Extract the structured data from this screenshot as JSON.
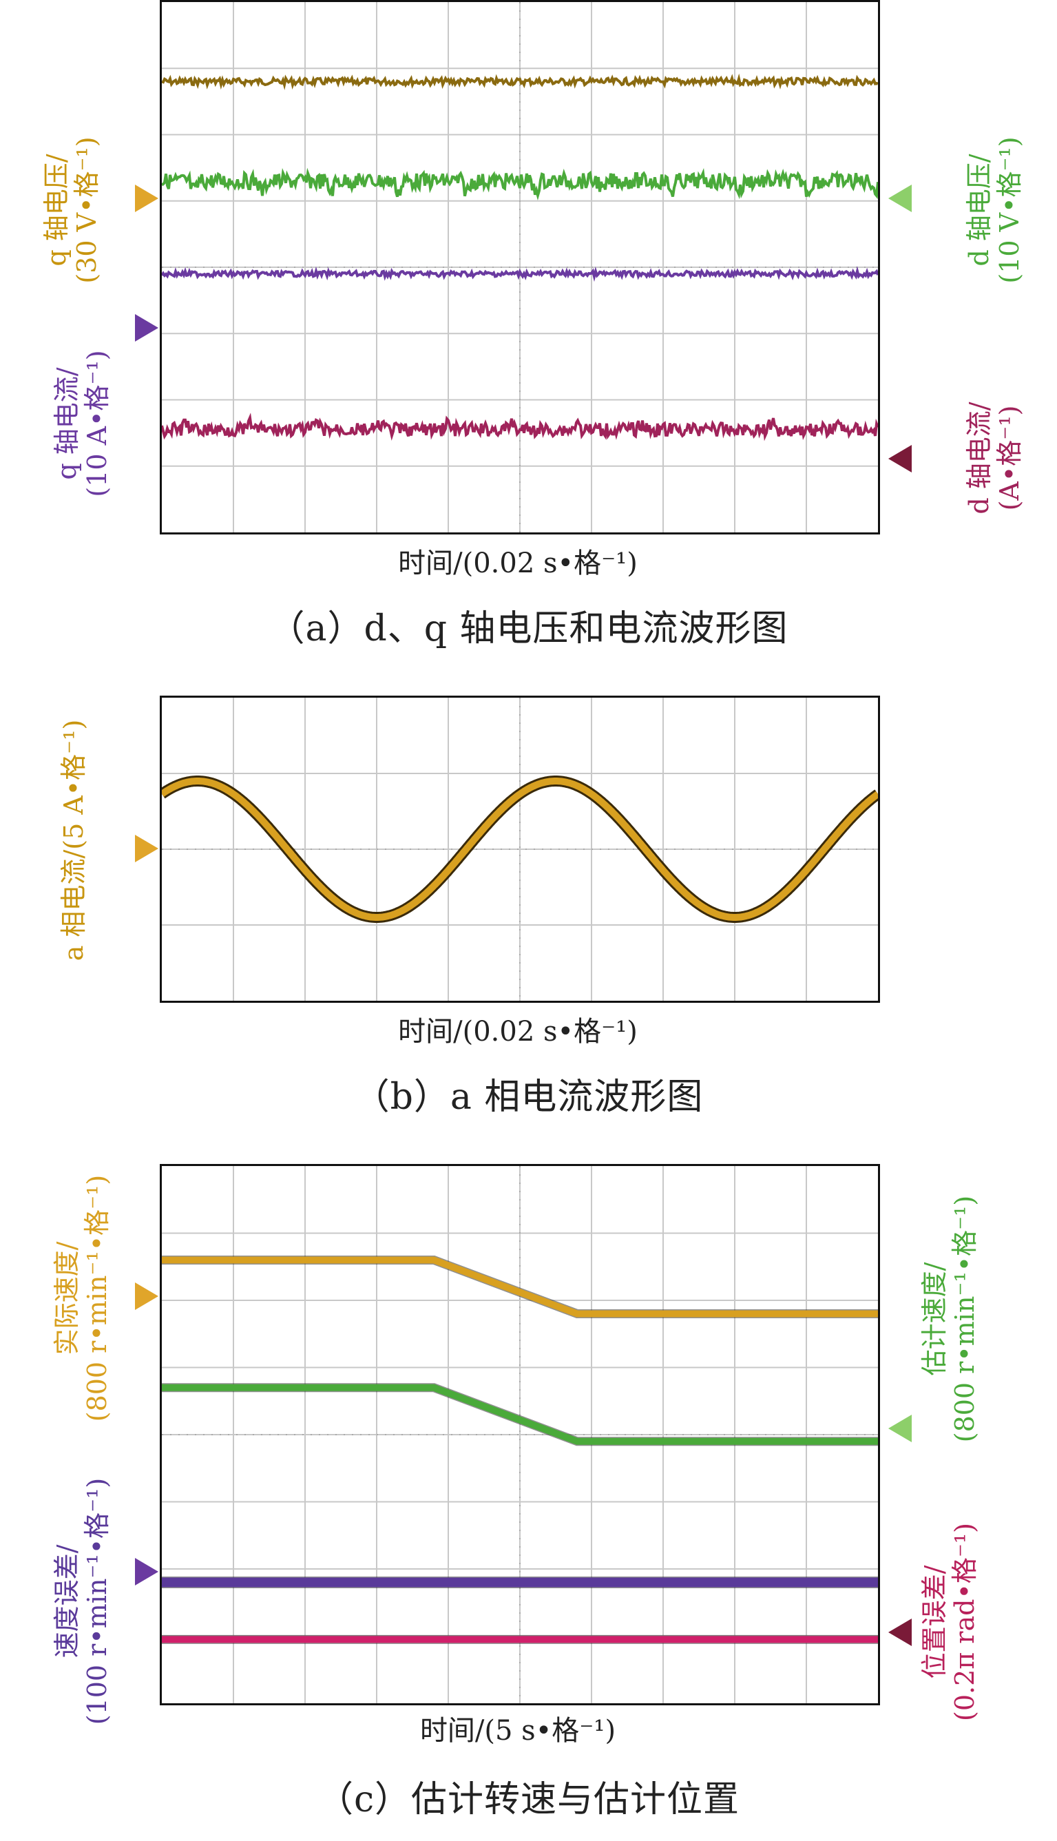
{
  "panels": [
    {
      "id": "a",
      "caption": "（a）d、q 轴电压和电流波形图",
      "xlabel": "时间/(0.02 s•格⁻¹)",
      "left_labels": [
        {
          "line1": "q 轴电压/",
          "line2": "(30 V•格⁻¹)",
          "color": "#c8950f"
        },
        {
          "line1": "q 轴电流/",
          "line2": "(10 A•格⁻¹)",
          "color": "#6a3aa0"
        }
      ],
      "right_labels": [
        {
          "line1": "d 轴电压/",
          "line2": "(10 V•格⁻¹)",
          "color": "#4aaa3a"
        },
        {
          "line1": "d 轴电流/",
          "line2": "(A•格⁻¹)",
          "color": "#a0235a"
        }
      ]
    },
    {
      "id": "b",
      "caption": "（b）a 相电流波形图",
      "xlabel": "时间/(0.02 s•格⁻¹)",
      "left_labels": [
        {
          "line1": "a 相电流/(5 A•格⁻¹)",
          "line2": "",
          "color": "#c8950f"
        }
      ],
      "right_labels": []
    },
    {
      "id": "c",
      "caption": "（c）估计转速与估计位置",
      "xlabel": "时间/(5 s•格⁻¹)",
      "left_labels": [
        {
          "line1": "实际速度/",
          "line2": "(800 r•min⁻¹•格⁻¹)",
          "color": "#d8a020"
        },
        {
          "line1": "速度误差/",
          "line2": "(100 r•min⁻¹•格⁻¹)",
          "color": "#5a3a9a"
        }
      ],
      "right_labels": [
        {
          "line1": "估计速度/",
          "line2": "(800 r•min⁻¹•格⁻¹)",
          "color": "#4aaa3a"
        },
        {
          "line1": "位置误差/",
          "line2": "(0.2π rad•格⁻¹)",
          "color": "#b8205a"
        }
      ]
    }
  ],
  "chart_data": [
    {
      "type": "line",
      "title": "",
      "xlabel": "时间/(0.02 s•格⁻¹)",
      "grid": true,
      "divisions": {
        "x": 10,
        "y": 8
      },
      "series": [
        {
          "name": "q 轴电压",
          "color": "#8a6a10",
          "level_div": 6.8,
          "ripple": 0.05,
          "shape": "flat"
        },
        {
          "name": "d 轴电压",
          "color": "#4aaa3a",
          "level_div": 5.3,
          "ripple": 0.12,
          "shape": "dips"
        },
        {
          "name": "q 轴电流",
          "color": "#6a3aa0",
          "level_div": 3.9,
          "ripple": 0.04,
          "shape": "flat"
        },
        {
          "name": "d 轴电流",
          "color": "#a0235a",
          "level_div": 1.55,
          "ripple": 0.1,
          "shape": "bumps"
        }
      ]
    },
    {
      "type": "line",
      "title": "",
      "xlabel": "时间/(0.02 s•格⁻¹)",
      "grid": true,
      "divisions": {
        "x": 10,
        "y": 4
      },
      "series": [
        {
          "name": "a 相电流",
          "color": "#d8a020",
          "offset_div": 2,
          "amplitude_div": 0.9,
          "cycles": 2,
          "phase_div": 0.5
        }
      ]
    },
    {
      "type": "line",
      "title": "",
      "xlabel": "时间/(5 s•格⁻¹)",
      "grid": true,
      "divisions": {
        "x": 10,
        "y": 8
      },
      "series": [
        {
          "name": "实际速度",
          "color": "#d8a020",
          "x": [
            0,
            3.8,
            5.8,
            10
          ],
          "y_div": [
            6.6,
            6.6,
            5.8,
            5.8
          ]
        },
        {
          "name": "估计速度",
          "color": "#4aaa3a",
          "x": [
            0,
            3.8,
            5.8,
            10
          ],
          "y_div": [
            4.7,
            4.7,
            3.9,
            3.9
          ]
        },
        {
          "name": "速度误差",
          "color": "#5a3a9a",
          "x": [
            0,
            10
          ],
          "y_div": [
            1.8,
            1.8
          ]
        },
        {
          "name": "位置误差",
          "color": "#d0206a",
          "x": [
            0,
            10
          ],
          "y_div": [
            0.95,
            0.95
          ]
        }
      ]
    }
  ]
}
